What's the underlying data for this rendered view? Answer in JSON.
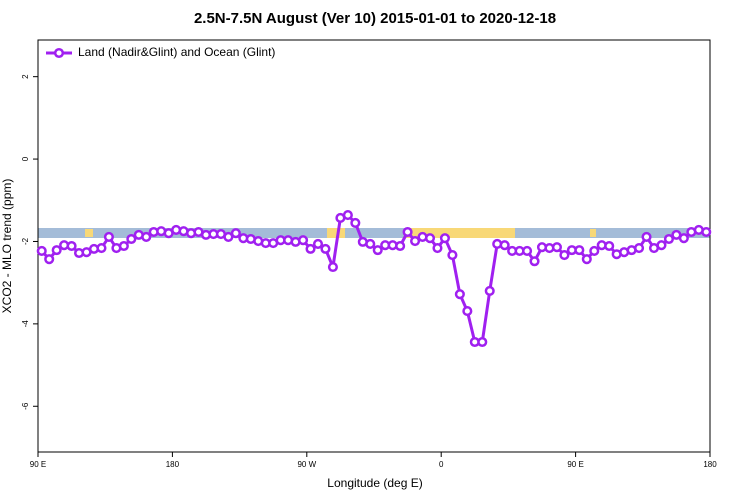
{
  "chart_data": {
    "type": "line",
    "title": "2.5N-7.5N August (Ver 10)   2015-01-01 to 2020-12-18",
    "xlabel": "Longitude (deg E)",
    "ylabel": "XCO2 - MLO trend (ppm)",
    "x": [
      92.5,
      97.5,
      102.5,
      107.5,
      112.5,
      117.5,
      122.5,
      127.5,
      132.5,
      137.5,
      142.5,
      147.5,
      152.5,
      157.5,
      162.5,
      167.5,
      172.5,
      177.5,
      182.5,
      187.5,
      192.5,
      197.5,
      202.5,
      207.5,
      212.5,
      217.5,
      222.5,
      227.5,
      232.5,
      237.5,
      242.5,
      247.5,
      252.5,
      257.5,
      262.5,
      267.5,
      272.5,
      277.5,
      282.5,
      287.5,
      292.5,
      297.5,
      302.5,
      307.5,
      312.5,
      317.5,
      322.5,
      327.5,
      332.5,
      337.5,
      342.5,
      347.5,
      352.5,
      357.5,
      362.5,
      367.5,
      372.5,
      377.5,
      382.5,
      387.5,
      392.5,
      397.5,
      402.5,
      407.5,
      412.5,
      417.5,
      422.5,
      427.5,
      432.5,
      437.5,
      442.5,
      447.5,
      452.5,
      457.5,
      462.5,
      467.5,
      472.5,
      477.5,
      482.5,
      487.5,
      492.5,
      497.5,
      502.5,
      507.5,
      512.5,
      517.5,
      522.5,
      527.5,
      532.5,
      537.5
    ],
    "series": [
      {
        "name": "Land (Nadir&Glint) and Ocean (Glint)",
        "color": "#a020f0",
        "values": [
          -2.23,
          -2.43,
          -2.21,
          -2.09,
          -2.11,
          -2.28,
          -2.26,
          -2.18,
          -2.16,
          -1.89,
          -2.16,
          -2.11,
          -1.94,
          -1.84,
          -1.89,
          -1.77,
          -1.75,
          -1.8,
          -1.72,
          -1.75,
          -1.8,
          -1.77,
          -1.84,
          -1.82,
          -1.82,
          -1.89,
          -1.8,
          -1.92,
          -1.94,
          -1.99,
          -2.04,
          -2.04,
          -1.97,
          -1.97,
          -2.01,
          -1.97,
          -2.18,
          -2.06,
          -2.18,
          -2.62,
          -1.43,
          -1.36,
          -1.55,
          -2.01,
          -2.06,
          -2.21,
          -2.09,
          -2.09,
          -2.11,
          -1.77,
          -1.99,
          -1.89,
          -1.92,
          -2.16,
          -1.92,
          -2.33,
          -3.28,
          -3.69,
          -4.44,
          -4.44,
          -3.2,
          -2.06,
          -2.09,
          -2.23,
          -2.23,
          -2.23,
          -2.48,
          -2.14,
          -2.16,
          -2.14,
          -2.33,
          -2.21,
          -2.21,
          -2.43,
          -2.23,
          -2.09,
          -2.11,
          -2.31,
          -2.26,
          -2.21,
          -2.16,
          -1.89,
          -2.16,
          -2.09,
          -1.94,
          -1.84,
          -1.92,
          -1.77,
          -1.72,
          -1.77
        ]
      }
    ],
    "xlim": [
      90,
      540
    ],
    "xticks": [
      {
        "value": 90,
        "label": "90 E"
      },
      180,
      {
        "value": 270,
        "label": "90 W"
      },
      {
        "value": 360,
        "label": "0"
      },
      {
        "value": 450,
        "label": "90 E"
      },
      {
        "value": 540,
        "label": "180"
      }
    ],
    "ylim": [
      -7.11,
      2.89
    ],
    "yticks": [
      -6,
      -4,
      -2,
      0,
      2
    ],
    "legend": "top-left"
  }
}
